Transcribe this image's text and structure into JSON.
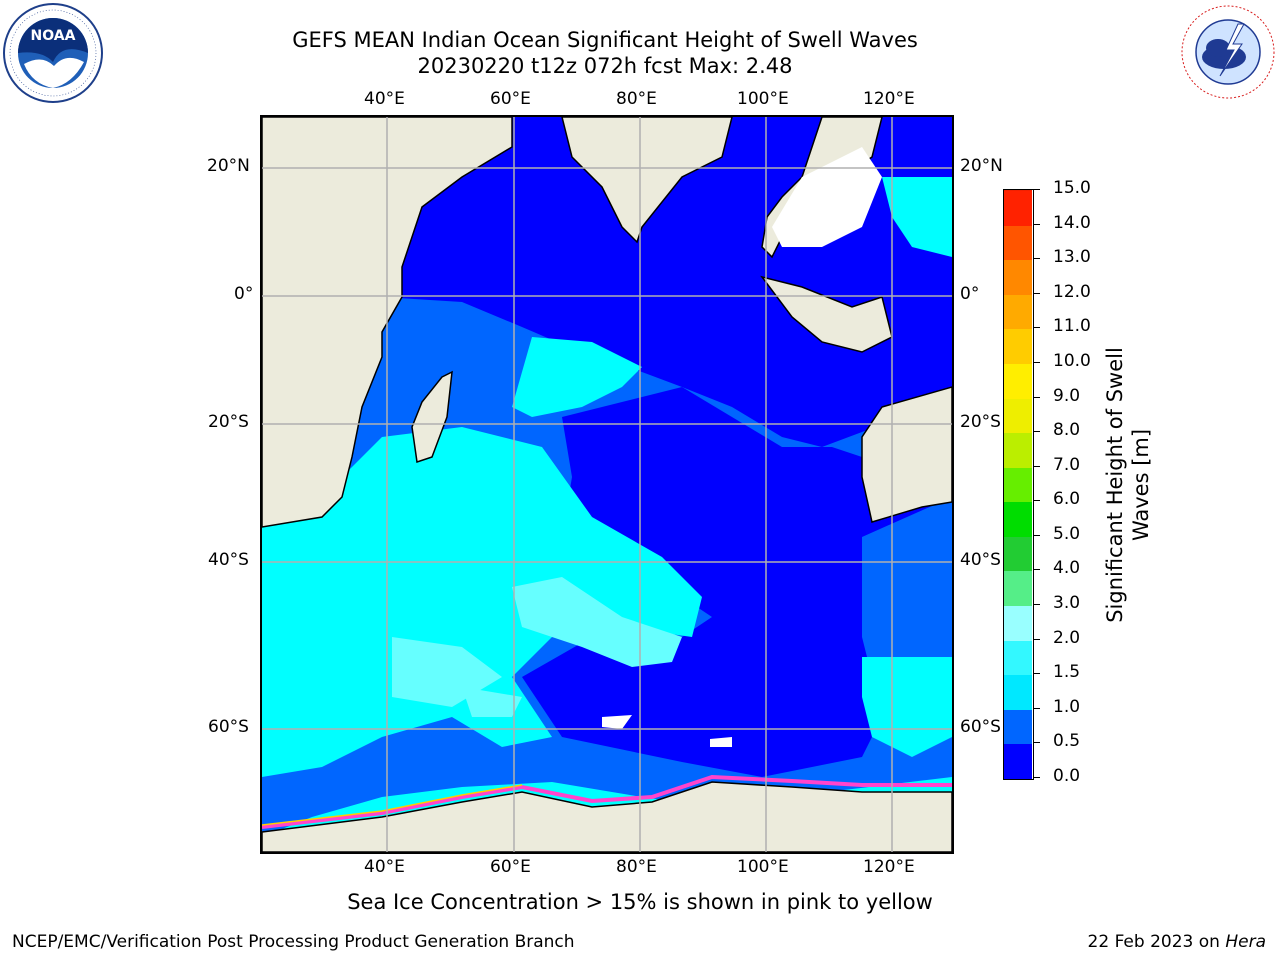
{
  "header": {
    "title_line1": "GEFS MEAN Indian Ocean Significant Height of Swell Waves",
    "title_line2": "20230220 t12z 072h fcst   Max: 2.48"
  },
  "logos": {
    "left": {
      "name": "NOAA",
      "ring_text": "NATIONAL OCEANIC AND ATMOSPHERIC ADMINISTRATION · U.S. DEPARTMENT OF COMMERCE"
    },
    "right": {
      "ring_text": "NATIONAL WEATHER SERVICE"
    }
  },
  "map": {
    "lon_labels": [
      "40°E",
      "60°E",
      "80°E",
      "100°E",
      "120°E"
    ],
    "lat_labels": [
      "20°N",
      "0°",
      "20°S",
      "40°S",
      "60°S"
    ],
    "colors": {
      "land": "#ecebdc",
      "ocean_0": "#0000ff",
      "ocean_05": "#0066ff",
      "ocean_1": "#00ffff",
      "ocean_15": "#33ffff",
      "ocean_2": "#66ffff",
      "grid": "#b0b0b0"
    }
  },
  "colorbar": {
    "title_line1": "Significant Height of Swell",
    "title_line2": "Waves [m]",
    "ticks": [
      "0.0",
      "0.5",
      "1.0",
      "1.5",
      "2.0",
      "3.0",
      "4.0",
      "5.0",
      "6.0",
      "7.0",
      "8.0",
      "9.0",
      "10.0",
      "11.0",
      "12.0",
      "13.0",
      "14.0",
      "15.0"
    ],
    "colors": [
      "#0000ff",
      "#0066ff",
      "#00e8ff",
      "#33f8ff",
      "#99ffff",
      "#55ee88",
      "#22cc33",
      "#00dd00",
      "#66ee00",
      "#bbee00",
      "#eeee00",
      "#ffee00",
      "#ffcc00",
      "#ffaa00",
      "#ff8800",
      "#ff5500",
      "#ff2200"
    ]
  },
  "caption": "Sea Ice Concentration > 15% is shown in pink to yellow",
  "footer": {
    "left": "NCEP/EMC/Verification Post Processing Product Generation Branch",
    "right_date": "22 Feb 2023 on ",
    "right_host": "Hera"
  }
}
